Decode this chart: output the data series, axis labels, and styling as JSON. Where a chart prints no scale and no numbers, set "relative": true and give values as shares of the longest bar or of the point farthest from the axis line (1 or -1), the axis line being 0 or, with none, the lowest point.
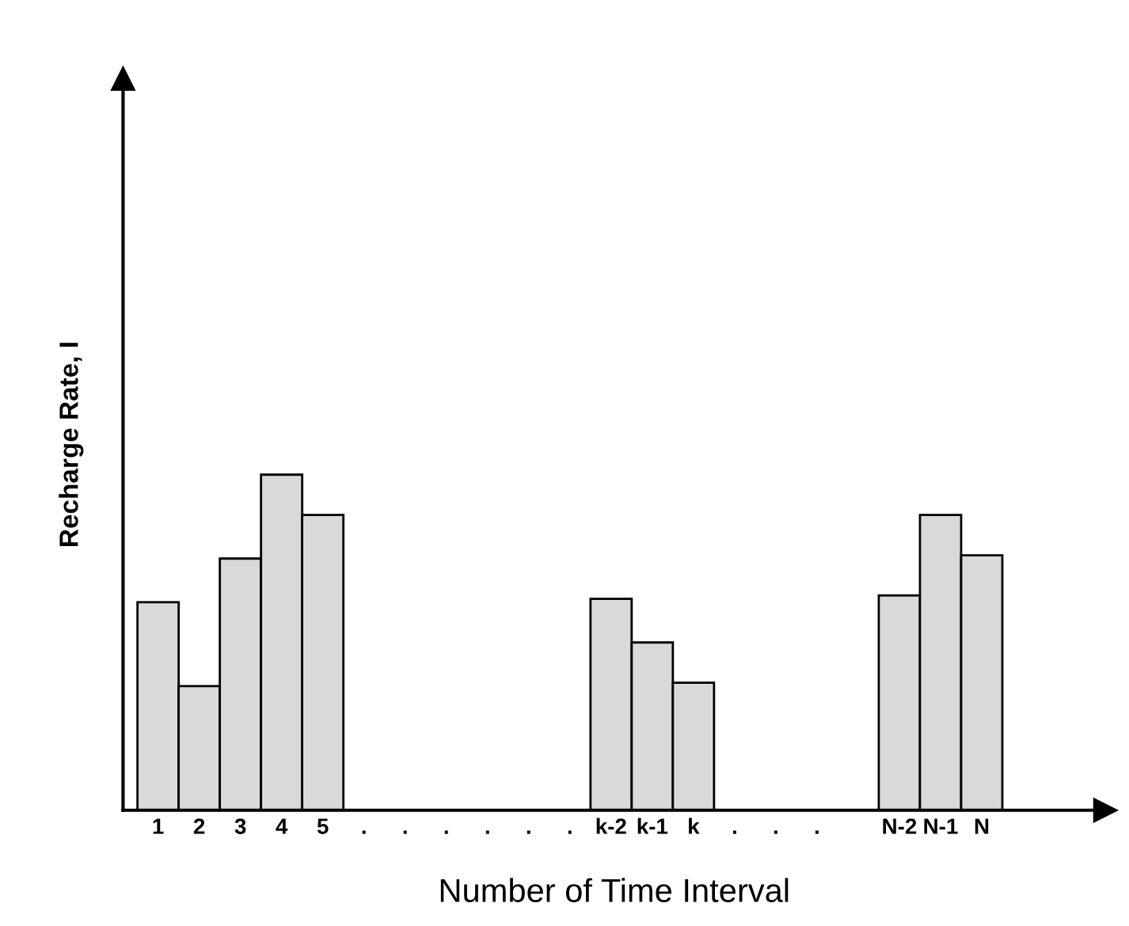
{
  "chart_data": {
    "type": "bar",
    "relative": true,
    "xlabel": "Number of Time Interval",
    "ylabel": "Recharge Rate, I",
    "categories": [
      "1",
      "2",
      "3",
      "4",
      "5",
      ".",
      ".",
      ".",
      ".",
      ".",
      ".",
      "k-2",
      "k-1",
      "k",
      ".",
      ".",
      ".",
      null,
      "N-2",
      "N-1",
      "N"
    ],
    "values": [
      0.62,
      0.37,
      0.75,
      1,
      0.88,
      null,
      null,
      null,
      null,
      null,
      null,
      0.63,
      0.5,
      0.38,
      null,
      null,
      null,
      null,
      0.64,
      0.88,
      0.76
    ],
    "color": "#d9d9d9",
    "grid": false,
    "legend": false
  }
}
